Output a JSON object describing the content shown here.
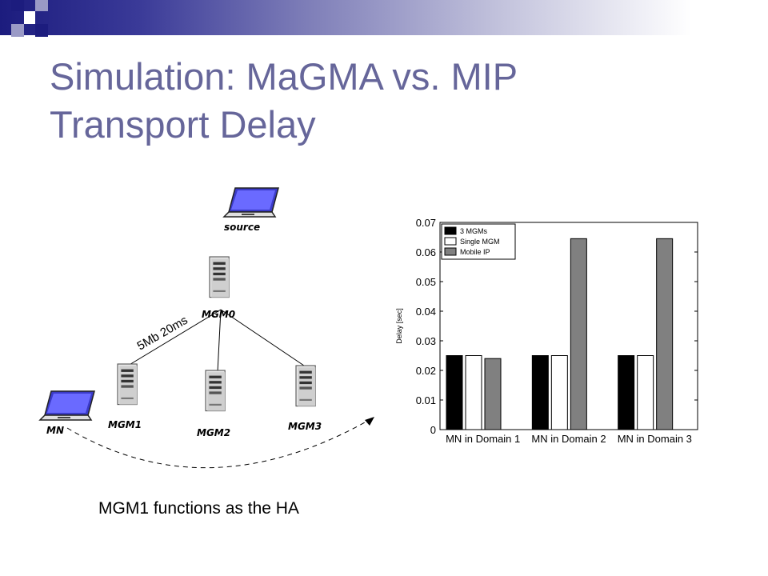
{
  "slide": {
    "title_line1": "Simulation: MaGMA vs. MIP",
    "title_line2": "Transport Delay",
    "caption": "MGM1 functions as the HA"
  },
  "diagram": {
    "nodes": {
      "source": "source",
      "mgm0": "MGM0",
      "mgm1": "MGM1",
      "mgm2": "MGM2",
      "mgm3": "MGM3",
      "mn": "MN"
    },
    "link_label": "5Mb 20ms"
  },
  "colors": {
    "title": "#66669a",
    "band_dark": "#1c1c7e",
    "series_3mgms": "#000000",
    "series_single": "#ffffff",
    "series_mobileip": "#808080"
  },
  "chart_data": {
    "type": "bar",
    "categories": [
      "MN in Domain 1",
      "MN in Domain 2",
      "MN in Domain 3"
    ],
    "series": [
      {
        "name": "3 MGMs",
        "values": [
          0.025,
          0.025,
          0.025
        ],
        "color": "#000000"
      },
      {
        "name": "Single MGM",
        "values": [
          0.025,
          0.025,
          0.025
        ],
        "color": "#ffffff"
      },
      {
        "name": "Mobile IP",
        "values": [
          0.024,
          0.0645,
          0.0645
        ],
        "color": "#808080"
      }
    ],
    "ylabel": "Delay [sec]",
    "xlabel": "",
    "ylim": [
      0,
      0.07
    ],
    "yticks": [
      "0",
      "0.01",
      "0.02",
      "0.03",
      "0.04",
      "0.05",
      "0.06",
      "0.07"
    ],
    "legend_position": "top-left",
    "grid": false
  }
}
